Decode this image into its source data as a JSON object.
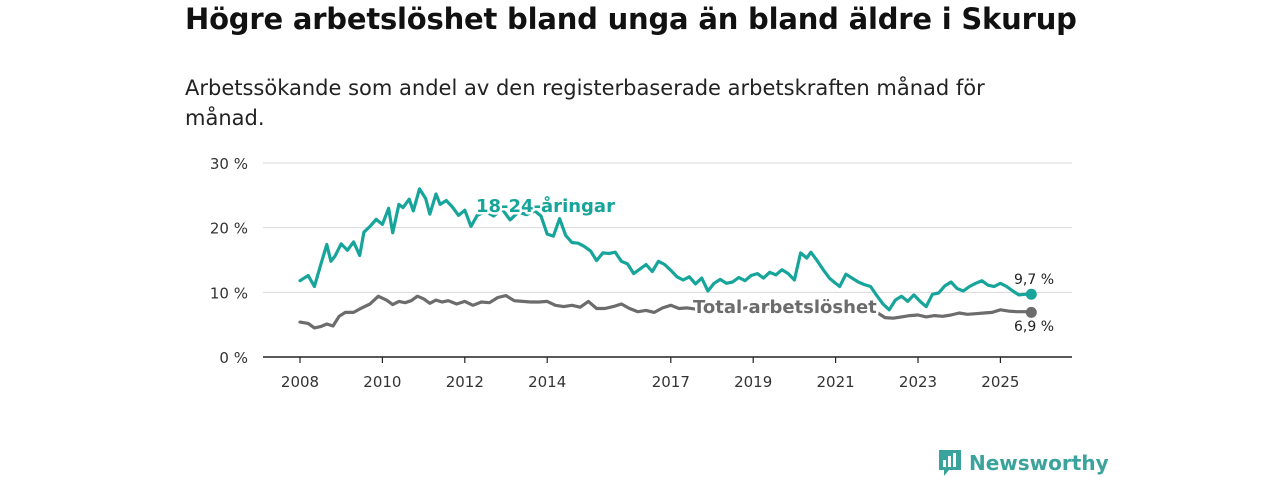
{
  "title": "Högre arbetslöshet bland unga än bland äldre i Skurup",
  "subtitle": "Arbetssökande som andel av den registerbaserade arbetskraften månad för månad.",
  "brand": {
    "name": "Newsworthy",
    "icon": "newsworthy-logo-icon"
  },
  "colors": {
    "youth": "#17a59b",
    "total": "#6c6c6c",
    "grid": "#d9d9d9",
    "axis": "#222222"
  },
  "chart_data": {
    "type": "line",
    "title": "Högre arbetslöshet bland unga än bland äldre i Skurup",
    "xlabel": "",
    "ylabel": "",
    "xlim": [
      2008,
      2026
    ],
    "ylim": [
      0,
      30
    ],
    "grid": true,
    "y_ticks": [
      {
        "value": 0,
        "label": "0 %"
      },
      {
        "value": 10,
        "label": "10 %"
      },
      {
        "value": 20,
        "label": "20 %"
      },
      {
        "value": 30,
        "label": "30 %"
      }
    ],
    "x_ticks": [
      {
        "value": 2008,
        "label": "2008"
      },
      {
        "value": 2010,
        "label": "2010"
      },
      {
        "value": 2012,
        "label": "2012"
      },
      {
        "value": 2014,
        "label": "2014"
      },
      {
        "value": 2017,
        "label": "2017"
      },
      {
        "value": 2019,
        "label": "2019"
      },
      {
        "value": 2021,
        "label": "2021"
      },
      {
        "value": 2023,
        "label": "2023"
      },
      {
        "value": 2025,
        "label": "2025"
      }
    ],
    "series": [
      {
        "name": "18-24-åringar",
        "key": "youth",
        "end_label": "9,7 %",
        "x": [
          2008.0,
          2008.2,
          2008.35,
          2008.5,
          2008.65,
          2008.75,
          2008.85,
          2009.0,
          2009.15,
          2009.3,
          2009.45,
          2009.55,
          2009.7,
          2009.85,
          2010.0,
          2010.15,
          2010.25,
          2010.4,
          2010.5,
          2010.65,
          2010.75,
          2010.9,
          2011.05,
          2011.15,
          2011.3,
          2011.4,
          2011.55,
          2011.7,
          2011.85,
          2012.0,
          2012.15,
          2012.3,
          2012.5,
          2012.7,
          2012.9,
          2013.1,
          2013.3,
          2013.5,
          2013.7,
          2013.85,
          2014.0,
          2014.15,
          2014.3,
          2014.45,
          2014.6,
          2014.75,
          2014.9,
          2015.05,
          2015.2,
          2015.35,
          2015.5,
          2015.65,
          2015.8,
          2015.95,
          2016.1,
          2016.25,
          2016.4,
          2016.55,
          2016.7,
          2016.85,
          2017.0,
          2017.15,
          2017.3,
          2017.45,
          2017.6,
          2017.75,
          2017.9,
          2018.05,
          2018.2,
          2018.35,
          2018.5,
          2018.65,
          2018.8,
          2018.95,
          2019.1,
          2019.25,
          2019.4,
          2019.55,
          2019.7,
          2019.85,
          2020.0,
          2020.15,
          2020.3,
          2020.4,
          2020.55,
          2020.7,
          2020.85,
          2021.0,
          2021.1,
          2021.25,
          2021.4,
          2021.55,
          2021.7,
          2021.85,
          2022.0,
          2022.15,
          2022.3,
          2022.45,
          2022.6,
          2022.75,
          2022.9,
          2023.05,
          2023.2,
          2023.35,
          2023.5,
          2023.65,
          2023.8,
          2023.95,
          2024.1,
          2024.25,
          2024.4,
          2024.55,
          2024.7,
          2024.85,
          2025.0,
          2025.15,
          2025.3,
          2025.45,
          2025.6,
          2025.75
        ],
        "values": [
          11.8,
          12.6,
          10.9,
          14.2,
          17.4,
          14.8,
          15.6,
          17.5,
          16.5,
          17.8,
          15.7,
          19.3,
          20.2,
          21.3,
          20.5,
          23.0,
          19.2,
          23.6,
          23.1,
          24.4,
          22.6,
          26.0,
          24.5,
          22.1,
          25.2,
          23.6,
          24.2,
          23.2,
          21.9,
          22.7,
          20.2,
          21.9,
          22.5,
          21.8,
          22.9,
          21.2,
          22.4,
          22.0,
          22.6,
          21.8,
          19.0,
          18.7,
          21.4,
          18.8,
          17.7,
          17.6,
          17.1,
          16.4,
          14.9,
          16.1,
          16.0,
          16.2,
          14.8,
          14.4,
          12.9,
          13.6,
          14.3,
          13.2,
          14.8,
          14.3,
          13.4,
          12.4,
          11.9,
          12.4,
          11.3,
          12.2,
          10.2,
          11.4,
          12.0,
          11.4,
          11.6,
          12.3,
          11.8,
          12.6,
          12.9,
          12.2,
          13.1,
          12.7,
          13.5,
          12.9,
          11.9,
          16.1,
          15.3,
          16.2,
          14.9,
          13.5,
          12.2,
          11.4,
          10.9,
          12.8,
          12.2,
          11.6,
          11.2,
          10.9,
          9.5,
          8.2,
          7.3,
          8.8,
          9.4,
          8.6,
          9.6,
          8.6,
          7.8,
          9.7,
          9.9,
          11.0,
          11.6,
          10.6,
          10.2,
          10.9,
          11.4,
          11.8,
          11.1,
          10.9,
          11.4,
          10.9,
          10.2,
          9.6,
          9.7,
          9.7
        ]
      },
      {
        "name": "Total arbetslöshet",
        "key": "total",
        "end_label": "6,9 %",
        "x": [
          2008.0,
          2008.2,
          2008.35,
          2008.5,
          2008.65,
          2008.8,
          2008.95,
          2009.1,
          2009.3,
          2009.5,
          2009.7,
          2009.9,
          2010.1,
          2010.25,
          2010.4,
          2010.55,
          2010.7,
          2010.85,
          2011.0,
          2011.15,
          2011.3,
          2011.45,
          2011.6,
          2011.8,
          2012.0,
          2012.2,
          2012.4,
          2012.6,
          2012.8,
          2013.0,
          2013.2,
          2013.4,
          2013.6,
          2013.8,
          2014.0,
          2014.2,
          2014.4,
          2014.6,
          2014.8,
          2015.0,
          2015.2,
          2015.4,
          2015.6,
          2015.8,
          2016.0,
          2016.2,
          2016.4,
          2016.6,
          2016.8,
          2017.0,
          2017.2,
          2017.4,
          2017.6,
          2017.8,
          2018.0,
          2018.2,
          2018.4,
          2018.6,
          2018.8,
          2019.0,
          2019.2,
          2019.4,
          2019.6,
          2019.8,
          2020.0,
          2020.2,
          2020.4,
          2020.6,
          2020.8,
          2021.0,
          2021.2,
          2021.4,
          2021.6,
          2021.8,
          2022.0,
          2022.2,
          2022.4,
          2022.6,
          2022.8,
          2023.0,
          2023.2,
          2023.4,
          2023.6,
          2023.8,
          2024.0,
          2024.2,
          2024.4,
          2024.6,
          2024.8,
          2025.0,
          2025.2,
          2025.4,
          2025.6,
          2025.75
        ],
        "values": [
          5.4,
          5.2,
          4.5,
          4.7,
          5.1,
          4.8,
          6.3,
          6.9,
          6.9,
          7.6,
          8.2,
          9.4,
          8.8,
          8.1,
          8.6,
          8.4,
          8.7,
          9.4,
          9.0,
          8.3,
          8.8,
          8.5,
          8.7,
          8.2,
          8.6,
          8.0,
          8.5,
          8.4,
          9.2,
          9.5,
          8.7,
          8.6,
          8.5,
          8.5,
          8.6,
          8.0,
          7.8,
          8.0,
          7.7,
          8.6,
          7.5,
          7.5,
          7.8,
          8.2,
          7.5,
          7.0,
          7.2,
          6.9,
          7.6,
          8.0,
          7.5,
          7.6,
          7.4,
          7.5,
          7.3,
          7.4,
          7.2,
          7.4,
          7.6,
          7.8,
          7.5,
          7.6,
          7.3,
          7.5,
          7.2,
          7.7,
          7.9,
          7.6,
          7.4,
          7.3,
          7.5,
          7.4,
          7.2,
          7.1,
          6.9,
          6.1,
          6.0,
          6.2,
          6.4,
          6.5,
          6.2,
          6.4,
          6.3,
          6.5,
          6.8,
          6.6,
          6.7,
          6.8,
          6.9,
          7.3,
          7.1,
          7.0,
          7.0,
          6.9
        ]
      }
    ]
  }
}
